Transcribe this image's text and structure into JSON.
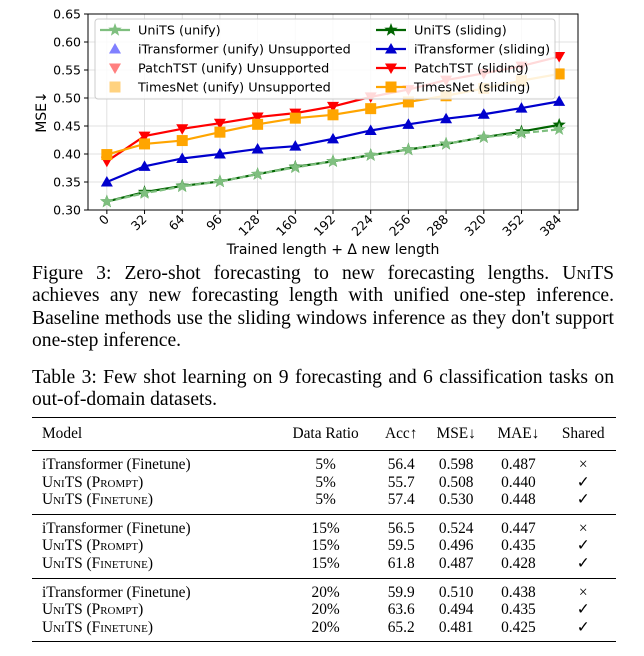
{
  "figure": {
    "chart_data": {
      "type": "line",
      "x": [
        0,
        32,
        64,
        96,
        128,
        160,
        192,
        224,
        256,
        288,
        320,
        352,
        384
      ],
      "xlabel": "Trained length + Δ new length",
      "ylabel": "MSE↓",
      "ylim": [
        0.3,
        0.65
      ],
      "xlim": [
        -16,
        400
      ],
      "yticks": [
        "0.30",
        "0.35",
        "0.40",
        "0.45",
        "0.50",
        "0.55",
        "0.60",
        "0.65"
      ],
      "xticks": [
        "0",
        "32",
        "64",
        "96",
        "128",
        "160",
        "192",
        "224",
        "256",
        "288",
        "320",
        "352",
        "384"
      ],
      "grid": true,
      "legend_position": "top",
      "series": [
        {
          "name": "UniTS (unify)",
          "color": "#7fbf7f",
          "marker": "star",
          "dashed": true,
          "values": [
            0.315,
            0.33,
            0.342,
            0.351,
            0.364,
            0.376,
            0.387,
            0.398,
            0.408,
            0.418,
            0.43,
            0.437,
            0.444
          ]
        },
        {
          "name": "UniTS (sliding)",
          "color": "#006400",
          "marker": "star",
          "dashed": false,
          "values": [
            0.315,
            0.332,
            0.343,
            0.351,
            0.364,
            0.377,
            0.387,
            0.398,
            0.408,
            0.418,
            0.43,
            0.44,
            0.452
          ]
        },
        {
          "name": "iTransformer (sliding)",
          "color": "#0000cd",
          "marker": "triangle-up",
          "dashed": false,
          "values": [
            0.35,
            0.378,
            0.392,
            0.4,
            0.409,
            0.414,
            0.427,
            0.442,
            0.453,
            0.463,
            0.471,
            0.482,
            0.494
          ]
        },
        {
          "name": "PatchTST (sliding)",
          "color": "#ff0000",
          "marker": "triangle-down",
          "dashed": false,
          "values": [
            0.387,
            0.432,
            0.445,
            0.455,
            0.466,
            0.473,
            0.485,
            0.502,
            0.515,
            0.532,
            0.544,
            0.557,
            0.574
          ]
        },
        {
          "name": "TimesNet (sliding)",
          "color": "#ffa500",
          "marker": "square",
          "dashed": false,
          "values": [
            0.399,
            0.418,
            0.424,
            0.439,
            0.453,
            0.464,
            0.47,
            0.481,
            0.493,
            0.504,
            0.517,
            0.531,
            0.543
          ]
        }
      ],
      "legend": [
        {
          "label": "UniTS (unify)",
          "color": "#7fbf7f",
          "marker": "star",
          "line": true,
          "faded": false
        },
        {
          "label": "UniTS (sliding)",
          "color": "#006400",
          "marker": "star",
          "line": true,
          "faded": false
        },
        {
          "label": "iTransformer (unify) Unsupported",
          "color": "#8080ff",
          "marker": "triangle-up",
          "line": false,
          "faded": true
        },
        {
          "label": "iTransformer (sliding)",
          "color": "#0000cd",
          "marker": "triangle-up",
          "line": true,
          "faded": false
        },
        {
          "label": "PatchTST (unify) Unsupported",
          "color": "#ff7f7f",
          "marker": "triangle-down",
          "line": false,
          "faded": true
        },
        {
          "label": "PatchTST (sliding)",
          "color": "#ff0000",
          "marker": "triangle-down",
          "line": true,
          "faded": false
        },
        {
          "label": "TimesNet (unify) Unsupported",
          "color": "#ffd27f",
          "marker": "square",
          "line": false,
          "faded": true
        },
        {
          "label": "TimesNet (sliding)",
          "color": "#ffa500",
          "marker": "square",
          "line": true,
          "faded": false
        }
      ]
    },
    "caption": {
      "label": "Figure 3:",
      "t1": " Zero-shot forecasting to new forecasting lengths. ",
      "units": "UniTS",
      "t2": " achieves any new forecasting length with unified one-step inference. Baseline methods use the sliding windows inference as they don't support one-step inference."
    }
  },
  "table": {
    "caption": {
      "label": "Table 3:",
      "text": " Few shot learning on 9 forecasting and 6 classification tasks on out-of-domain datasets."
    },
    "headers": [
      "Model",
      "Data Ratio",
      "Acc↑",
      "MSE↓",
      "MAE↓",
      "Shared"
    ],
    "groups": [
      {
        "rows": [
          {
            "model": "iTransformer (Finetune)",
            "ratio": "5%",
            "acc": "56.4",
            "mse": "0.598",
            "mae": "0.487",
            "shared": "×"
          },
          {
            "model": "UniTS (Prompt)",
            "ratio": "5%",
            "acc": "55.7",
            "mse": "0.508",
            "mae": "0.440",
            "shared": "✓"
          },
          {
            "model": "UniTS (Finetune)",
            "ratio": "5%",
            "acc": "57.4",
            "mse": "0.530",
            "mae": "0.448",
            "shared": "✓"
          }
        ]
      },
      {
        "rows": [
          {
            "model": "iTransformer (Finetune)",
            "ratio": "15%",
            "acc": "56.5",
            "mse": "0.524",
            "mae": "0.447",
            "shared": "×"
          },
          {
            "model": "UniTS (Prompt)",
            "ratio": "15%",
            "acc": "59.5",
            "mse": "0.496",
            "mae": "0.435",
            "shared": "✓"
          },
          {
            "model": "UniTS (Finetune)",
            "ratio": "15%",
            "acc": "61.8",
            "mse": "0.487",
            "mae": "0.428",
            "shared": "✓"
          }
        ]
      },
      {
        "rows": [
          {
            "model": "iTransformer (Finetune)",
            "ratio": "20%",
            "acc": "59.9",
            "mse": "0.510",
            "mae": "0.438",
            "shared": "×"
          },
          {
            "model": "UniTS (Prompt)",
            "ratio": "20%",
            "acc": "63.6",
            "mse": "0.494",
            "mae": "0.435",
            "shared": "✓"
          },
          {
            "model": "UniTS (Finetune)",
            "ratio": "20%",
            "acc": "65.2",
            "mse": "0.481",
            "mae": "0.425",
            "shared": "✓"
          }
        ]
      }
    ]
  }
}
